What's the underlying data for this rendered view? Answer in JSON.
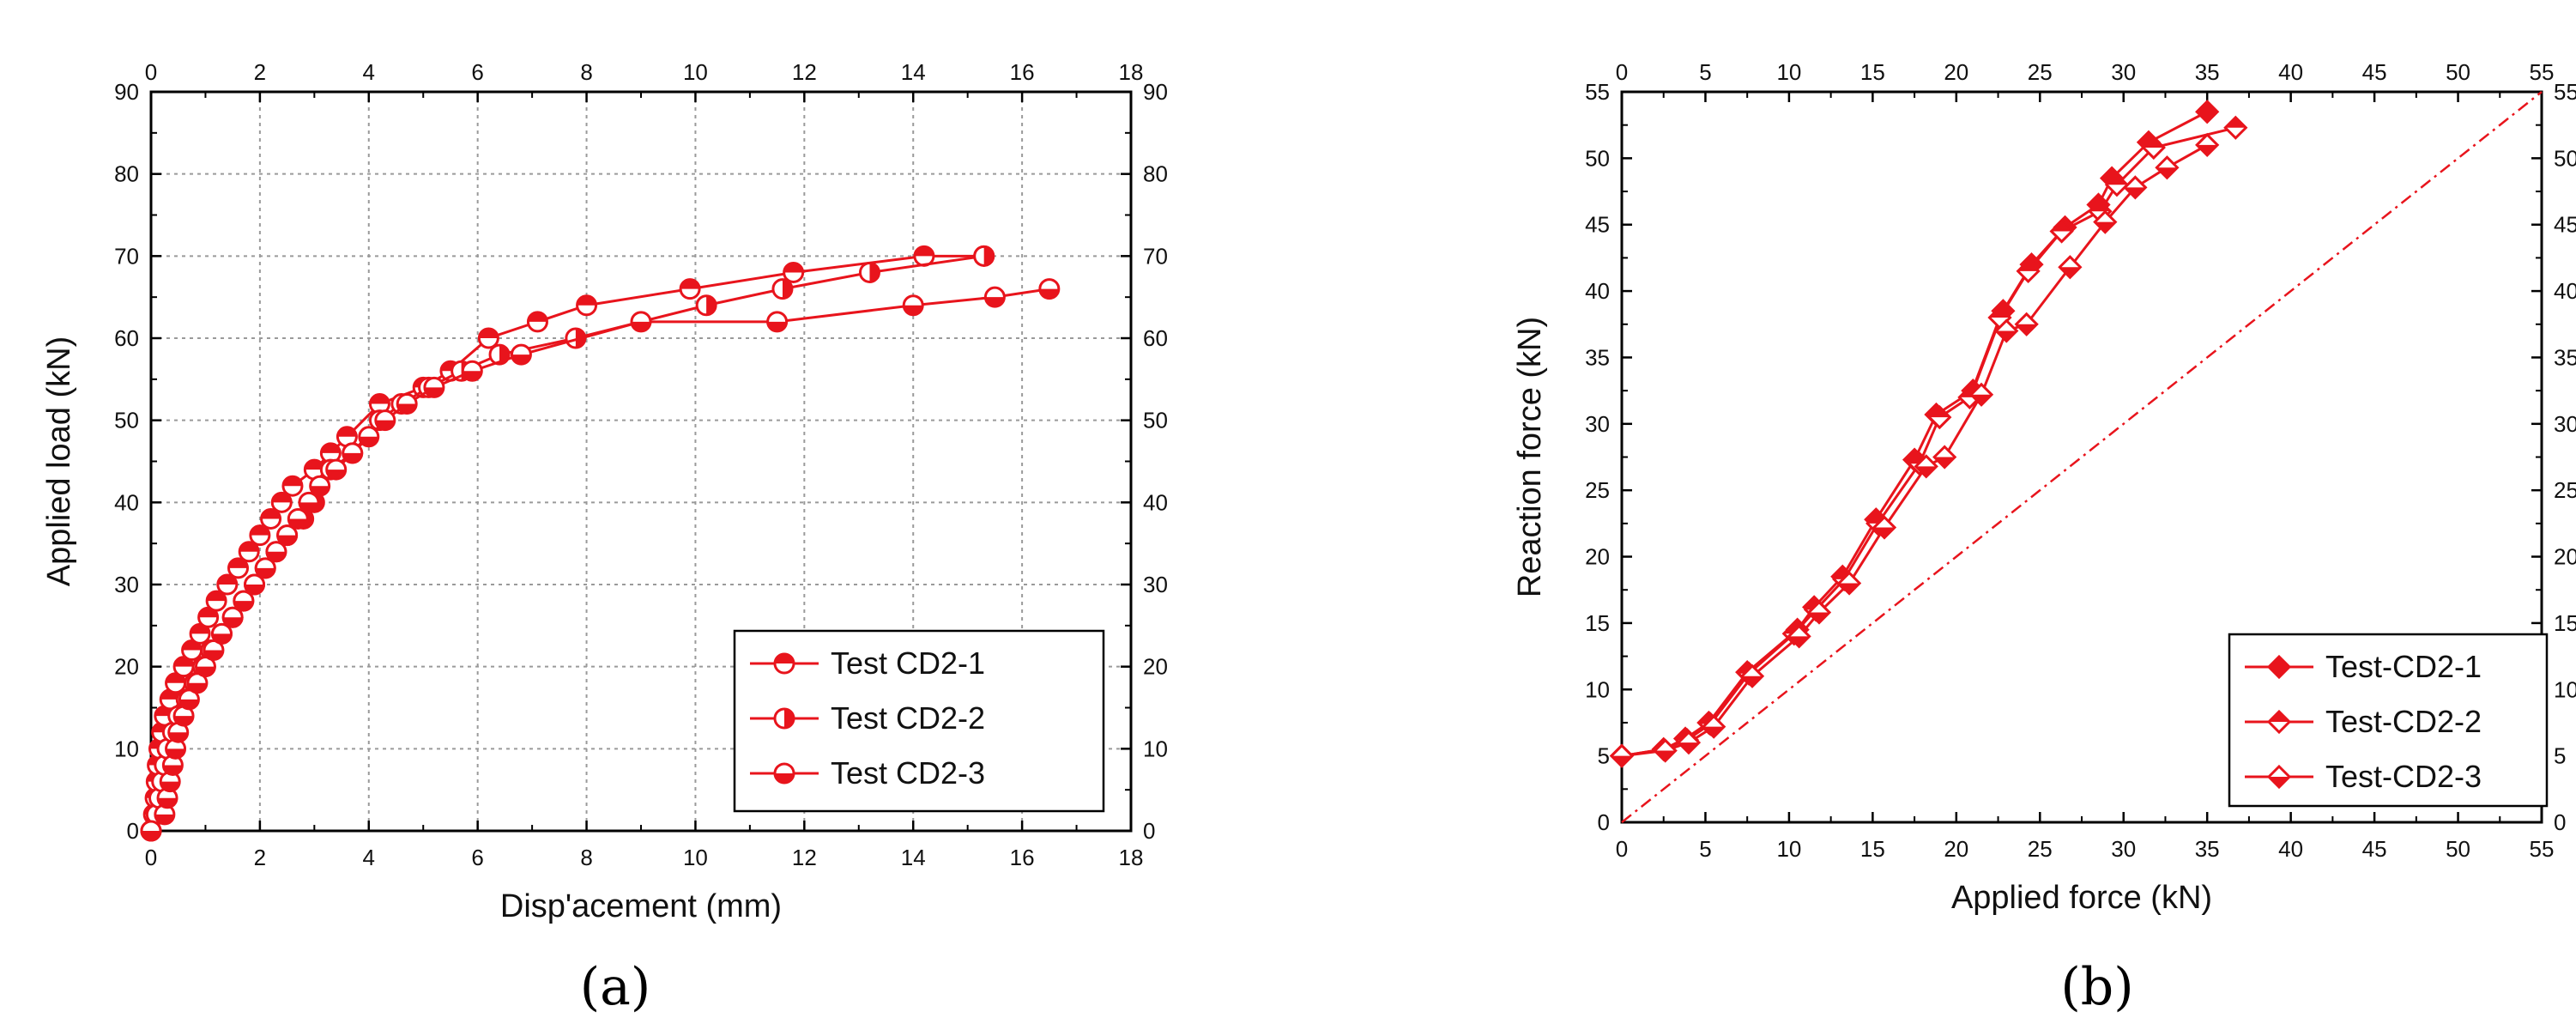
{
  "chart_data": [
    {
      "type": "line",
      "panel_label": "(a)",
      "xlabel": "Disp'acement (mm)",
      "ylabel": "Applied load (kN)",
      "xlim": [
        0,
        18
      ],
      "ylim": [
        0,
        90
      ],
      "xticks": [
        0,
        2,
        4,
        6,
        8,
        10,
        12,
        14,
        16,
        18
      ],
      "yticks": [
        0,
        10,
        20,
        30,
        40,
        50,
        60,
        70,
        80,
        90
      ],
      "grid": true,
      "legend_position": "bottom-right",
      "color": "#e8141c",
      "series": [
        {
          "name": "Test CD2-1",
          "marker": "circle-half-top",
          "x": [
            0,
            0.05,
            0.08,
            0.1,
            0.12,
            0.15,
            0.2,
            0.25,
            0.35,
            0.45,
            0.6,
            0.75,
            0.9,
            1.05,
            1.2,
            1.4,
            1.6,
            1.8,
            2.0,
            2.2,
            2.4,
            2.6,
            3.0,
            3.3,
            3.6,
            4.2,
            5.0,
            5.5,
            6.2,
            7.1,
            8.0,
            9.9,
            11.8,
            14.2,
            15.3
          ],
          "y": [
            0,
            2,
            4,
            6,
            8,
            10,
            12,
            14,
            16,
            18,
            20,
            22,
            24,
            26,
            28,
            30,
            32,
            34,
            36,
            38,
            40,
            42,
            44,
            46,
            48,
            52,
            54,
            56,
            60,
            62,
            64,
            66,
            68,
            70,
            70
          ]
        },
        {
          "name": "Test CD2-2",
          "marker": "circle-half-right",
          "x": [
            0,
            0.1,
            0.15,
            0.2,
            0.25,
            0.3,
            0.4,
            0.5,
            0.65,
            0.8,
            0.95,
            1.1,
            1.3,
            1.5,
            1.7,
            1.9,
            2.1,
            2.3,
            2.5,
            2.8,
            3.0,
            3.3,
            3.7,
            4.2,
            4.6,
            5.1,
            5.7,
            6.4,
            7.8,
            10.2,
            11.6,
            13.2,
            15.3
          ],
          "y": [
            0,
            2,
            4,
            6,
            8,
            10,
            12,
            14,
            16,
            18,
            20,
            22,
            24,
            26,
            28,
            30,
            32,
            34,
            36,
            38,
            40,
            44,
            46,
            50,
            52,
            54,
            56,
            58,
            60,
            64,
            66,
            68,
            70
          ]
        },
        {
          "name": "Test CD2-3",
          "marker": "circle-half-bottom",
          "x": [
            0,
            0.25,
            0.3,
            0.35,
            0.4,
            0.45,
            0.5,
            0.6,
            0.7,
            0.85,
            1.0,
            1.15,
            1.3,
            1.5,
            1.7,
            1.9,
            2.1,
            2.3,
            2.5,
            2.7,
            2.9,
            3.1,
            3.4,
            3.7,
            4.0,
            4.3,
            4.7,
            5.2,
            5.9,
            6.8,
            9.0,
            11.5,
            14.0,
            15.5,
            16.5
          ],
          "y": [
            0,
            2,
            4,
            6,
            8,
            10,
            12,
            14,
            16,
            18,
            20,
            22,
            24,
            26,
            28,
            30,
            32,
            34,
            36,
            38,
            40,
            42,
            44,
            46,
            48,
            50,
            52,
            54,
            56,
            58,
            62,
            62,
            64,
            65,
            66
          ]
        }
      ]
    },
    {
      "type": "line",
      "panel_label": "(b)",
      "xlabel": "Applied force (kN)",
      "ylabel": "Reaction force (kN)",
      "xlim": [
        0,
        55
      ],
      "ylim": [
        0,
        55
      ],
      "xticks": [
        0,
        5,
        10,
        15,
        20,
        25,
        30,
        35,
        40,
        45,
        50,
        55
      ],
      "yticks": [
        0,
        5,
        10,
        15,
        20,
        25,
        30,
        35,
        40,
        45,
        50,
        55
      ],
      "grid": false,
      "legend_position": "bottom-right",
      "color": "#e8141c",
      "reference_line": {
        "style": "dash-dot",
        "x": [
          0,
          55
        ],
        "y": [
          0,
          55
        ]
      },
      "series": [
        {
          "name": "Test-CD2-1",
          "marker": "diamond-filled",
          "x": [
            0,
            2.5,
            3.8,
            5.2,
            7.5,
            10.5,
            11.5,
            13.2,
            15.2,
            17.5,
            18.8,
            21.0,
            22.8,
            24.5,
            26.5,
            28.5,
            29.3,
            31.5,
            35.0
          ],
          "y": [
            5.0,
            5.5,
            6.3,
            7.5,
            11.3,
            14.5,
            16.2,
            18.5,
            22.8,
            27.3,
            30.7,
            32.5,
            38.5,
            42.0,
            44.8,
            46.5,
            48.5,
            51.2,
            53.5
          ]
        },
        {
          "name": "Test-CD2-2",
          "marker": "diamond-half-top",
          "x": [
            0,
            2.5,
            3.9,
            5.3,
            7.6,
            10.3,
            11.6,
            13.3,
            15.3,
            17.8,
            19.0,
            20.8,
            22.6,
            24.3,
            26.3,
            28.6,
            29.6,
            31.8,
            36.7
          ],
          "y": [
            5.0,
            5.5,
            6.2,
            7.4,
            11.2,
            14.2,
            16.0,
            18.3,
            22.5,
            27.0,
            30.5,
            32.0,
            38.0,
            41.5,
            44.5,
            46.0,
            48.0,
            50.8,
            52.3
          ]
        },
        {
          "name": "Test-CD2-3",
          "marker": "diamond-half-bottom",
          "x": [
            0,
            2.6,
            4.0,
            5.5,
            7.8,
            10.6,
            11.8,
            13.6,
            15.7,
            18.2,
            19.3,
            21.5,
            23.0,
            24.2,
            26.8,
            28.9,
            30.7,
            32.6,
            35.0
          ],
          "y": [
            5.0,
            5.4,
            6.0,
            7.2,
            11.0,
            14.0,
            15.8,
            18.0,
            22.2,
            26.8,
            27.5,
            32.2,
            37.0,
            37.5,
            41.8,
            45.2,
            47.8,
            49.3,
            51.0
          ]
        }
      ]
    }
  ]
}
